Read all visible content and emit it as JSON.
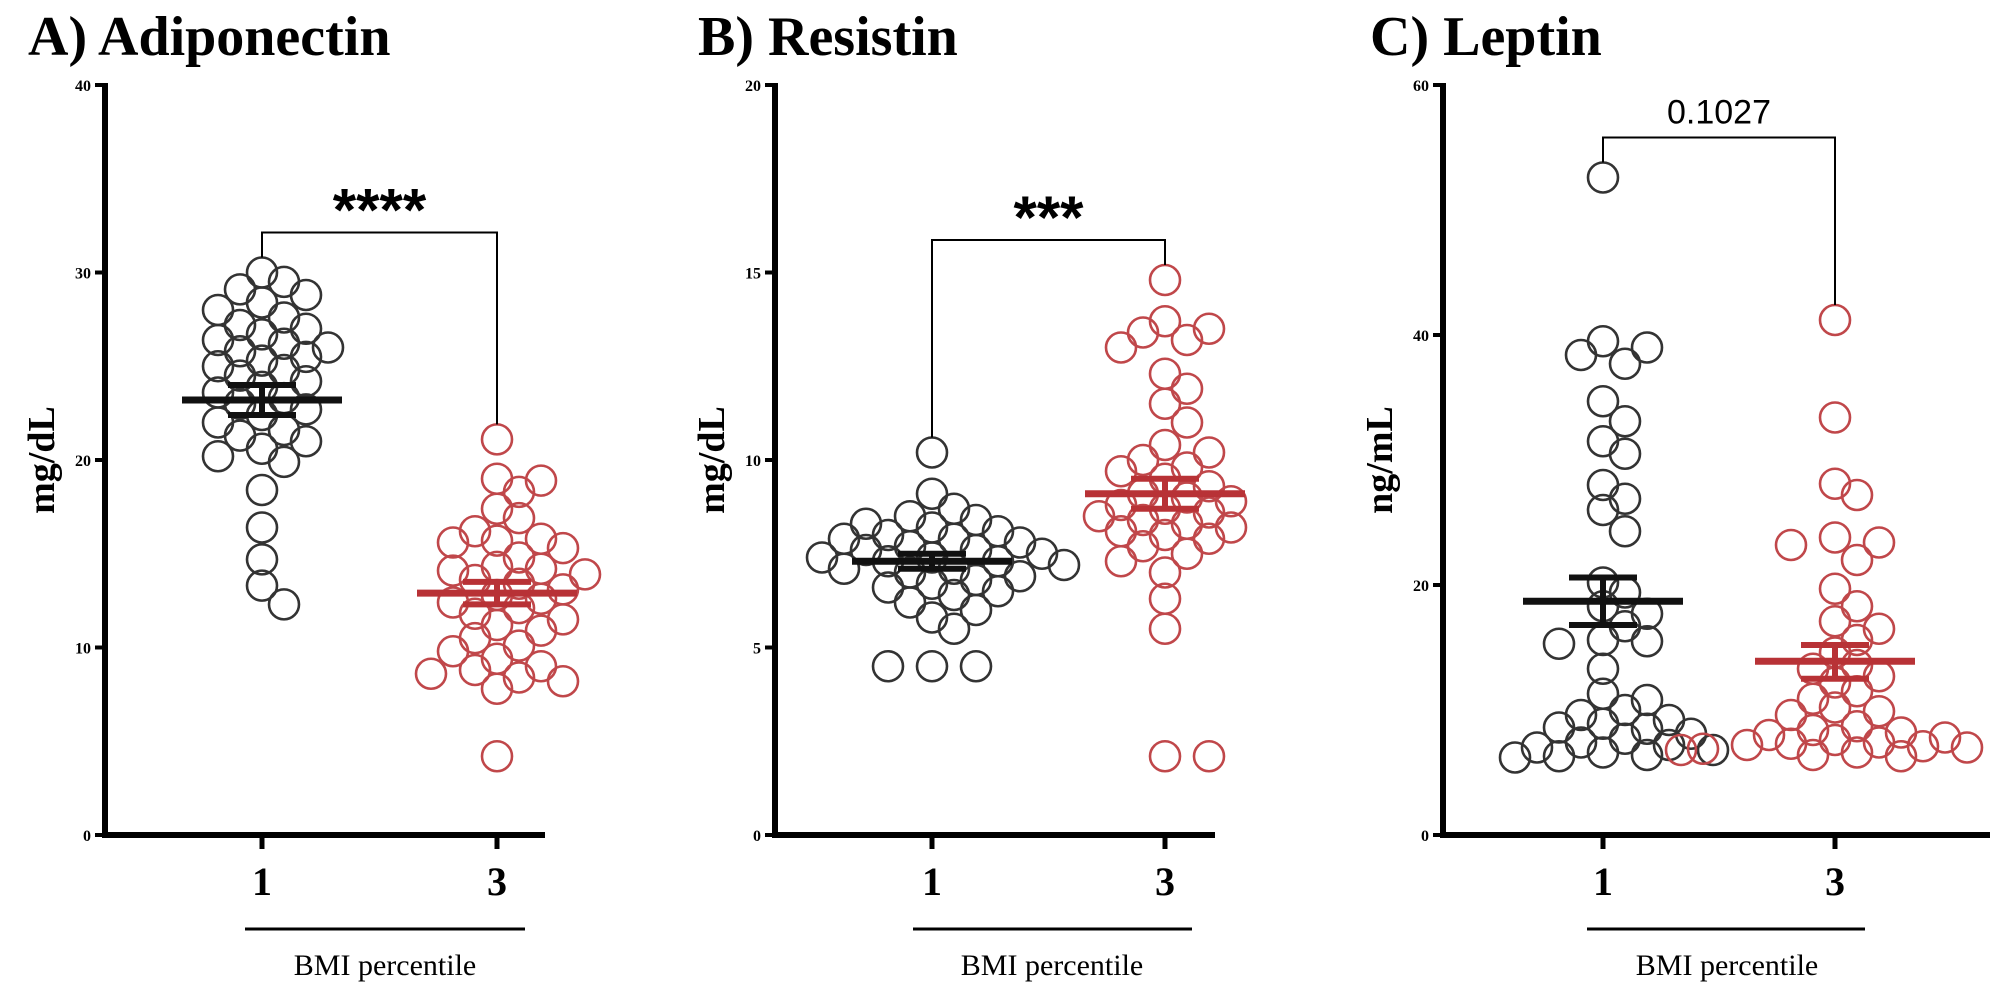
{
  "colors": {
    "group1": "#333333",
    "group3": "#c0474a",
    "group3_mean": "#b83236",
    "axis": "#000000"
  },
  "chart_data": [
    {
      "type": "scatter",
      "title": "A) Adiponectin",
      "ylabel": "mg/dL",
      "xlabel": "BMI percentile",
      "ylim": [
        0,
        40
      ],
      "yticks": [
        "0",
        "10",
        "20",
        "30",
        "40"
      ],
      "categories": [
        "1",
        "3"
      ],
      "significance": "****",
      "significance_style": "stars",
      "series": [
        {
          "name": "1",
          "mean": 23.2,
          "sem_low": 22.4,
          "sem_high": 24.0,
          "values": [
            30.0,
            29.5,
            29.1,
            28.8,
            28.4,
            28.0,
            27.6,
            27.2,
            27.0,
            26.7,
            26.4,
            26.2,
            26.0,
            25.8,
            25.5,
            25.3,
            25.0,
            24.8,
            24.5,
            24.2,
            23.9,
            23.6,
            23.3,
            23.0,
            22.7,
            22.4,
            22.0,
            21.6,
            21.3,
            21.0,
            20.6,
            20.2,
            19.9,
            18.4,
            16.4,
            14.7,
            13.3,
            12.3
          ]
        },
        {
          "name": "3",
          "mean": 12.9,
          "sem_low": 12.3,
          "sem_high": 13.5,
          "values": [
            21.1,
            19.0,
            18.9,
            18.3,
            17.4,
            16.9,
            16.2,
            15.8,
            15.7,
            15.6,
            15.3,
            14.8,
            14.3,
            14.2,
            14.1,
            13.9,
            13.6,
            13.4,
            13.1,
            12.8,
            12.6,
            12.4,
            12.1,
            11.8,
            11.5,
            11.2,
            10.9,
            10.5,
            10.1,
            9.8,
            9.4,
            9.0,
            8.8,
            8.6,
            8.4,
            8.2,
            7.8,
            4.2
          ]
        }
      ]
    },
    {
      "type": "scatter",
      "title": "B) Resistin",
      "ylabel": "mg/dL",
      "xlabel": "BMI percentile",
      "ylim": [
        0,
        20
      ],
      "yticks": [
        "0",
        "5",
        "10",
        "15",
        "20"
      ],
      "categories": [
        "1",
        "3"
      ],
      "significance": "***",
      "significance_style": "stars",
      "series": [
        {
          "name": "1",
          "mean": 7.3,
          "sem_low": 7.1,
          "sem_high": 7.5,
          "values": [
            10.2,
            9.1,
            8.7,
            8.5,
            8.4,
            8.3,
            8.2,
            8.1,
            8.0,
            7.9,
            7.9,
            7.8,
            7.7,
            7.6,
            7.6,
            7.5,
            7.4,
            7.4,
            7.3,
            7.3,
            7.2,
            7.1,
            7.1,
            7.0,
            6.9,
            6.8,
            6.7,
            6.6,
            6.5,
            6.4,
            6.2,
            6.0,
            5.8,
            5.5,
            4.5,
            4.5,
            4.5
          ]
        },
        {
          "name": "3",
          "mean": 9.1,
          "sem_low": 8.7,
          "sem_high": 9.5,
          "values": [
            14.8,
            13.7,
            13.5,
            13.4,
            13.2,
            13.0,
            12.3,
            11.9,
            11.5,
            11.0,
            10.4,
            10.2,
            10.0,
            9.8,
            9.7,
            9.5,
            9.3,
            9.1,
            9.0,
            8.9,
            8.8,
            8.7,
            8.6,
            8.5,
            8.4,
            8.3,
            8.2,
            8.1,
            8.0,
            7.9,
            7.7,
            7.5,
            7.3,
            7.0,
            6.3,
            5.5,
            2.1,
            2.1
          ]
        }
      ]
    },
    {
      "type": "scatter",
      "title": "C) Leptin",
      "ylabel": "ng/mL",
      "xlabel": "BMI percentile",
      "ylim": [
        0,
        60
      ],
      "yticks": [
        "0",
        "20",
        "40",
        "60"
      ],
      "categories": [
        "1",
        "3"
      ],
      "significance": "0.1027",
      "significance_style": "number",
      "series": [
        {
          "name": "1",
          "mean": 18.7,
          "sem_low": 16.8,
          "sem_high": 20.6,
          "values": [
            52.6,
            39.5,
            39.0,
            38.4,
            37.7,
            34.7,
            33.1,
            31.5,
            30.5,
            28.0,
            26.9,
            26.0,
            24.3,
            20.2,
            19.4,
            18.3,
            17.7,
            16.7,
            15.6,
            15.5,
            15.3,
            13.3,
            11.3,
            10.8,
            10.0,
            9.6,
            9.2,
            8.9,
            8.6,
            8.5,
            8.1,
            7.7,
            7.4,
            7.2,
            7.0,
            6.8,
            6.6,
            6.4,
            6.3,
            6.2
          ]
        },
        {
          "name": "3",
          "mean": 13.9,
          "sem_low": 12.5,
          "sem_high": 15.2,
          "values": [
            41.2,
            33.4,
            28.1,
            27.2,
            23.8,
            23.4,
            23.2,
            22.0,
            19.7,
            18.3,
            17.1,
            16.5,
            15.6,
            14.6,
            13.6,
            13.3,
            12.7,
            12.2,
            11.5,
            10.9,
            10.2,
            9.9,
            9.6,
            8.7,
            8.4,
            8.2,
            8.0,
            7.8,
            7.6,
            7.4,
            7.3,
            7.2,
            7.1,
            7.0,
            6.9,
            6.8,
            6.6,
            6.4,
            6.3
          ]
        }
      ]
    }
  ]
}
